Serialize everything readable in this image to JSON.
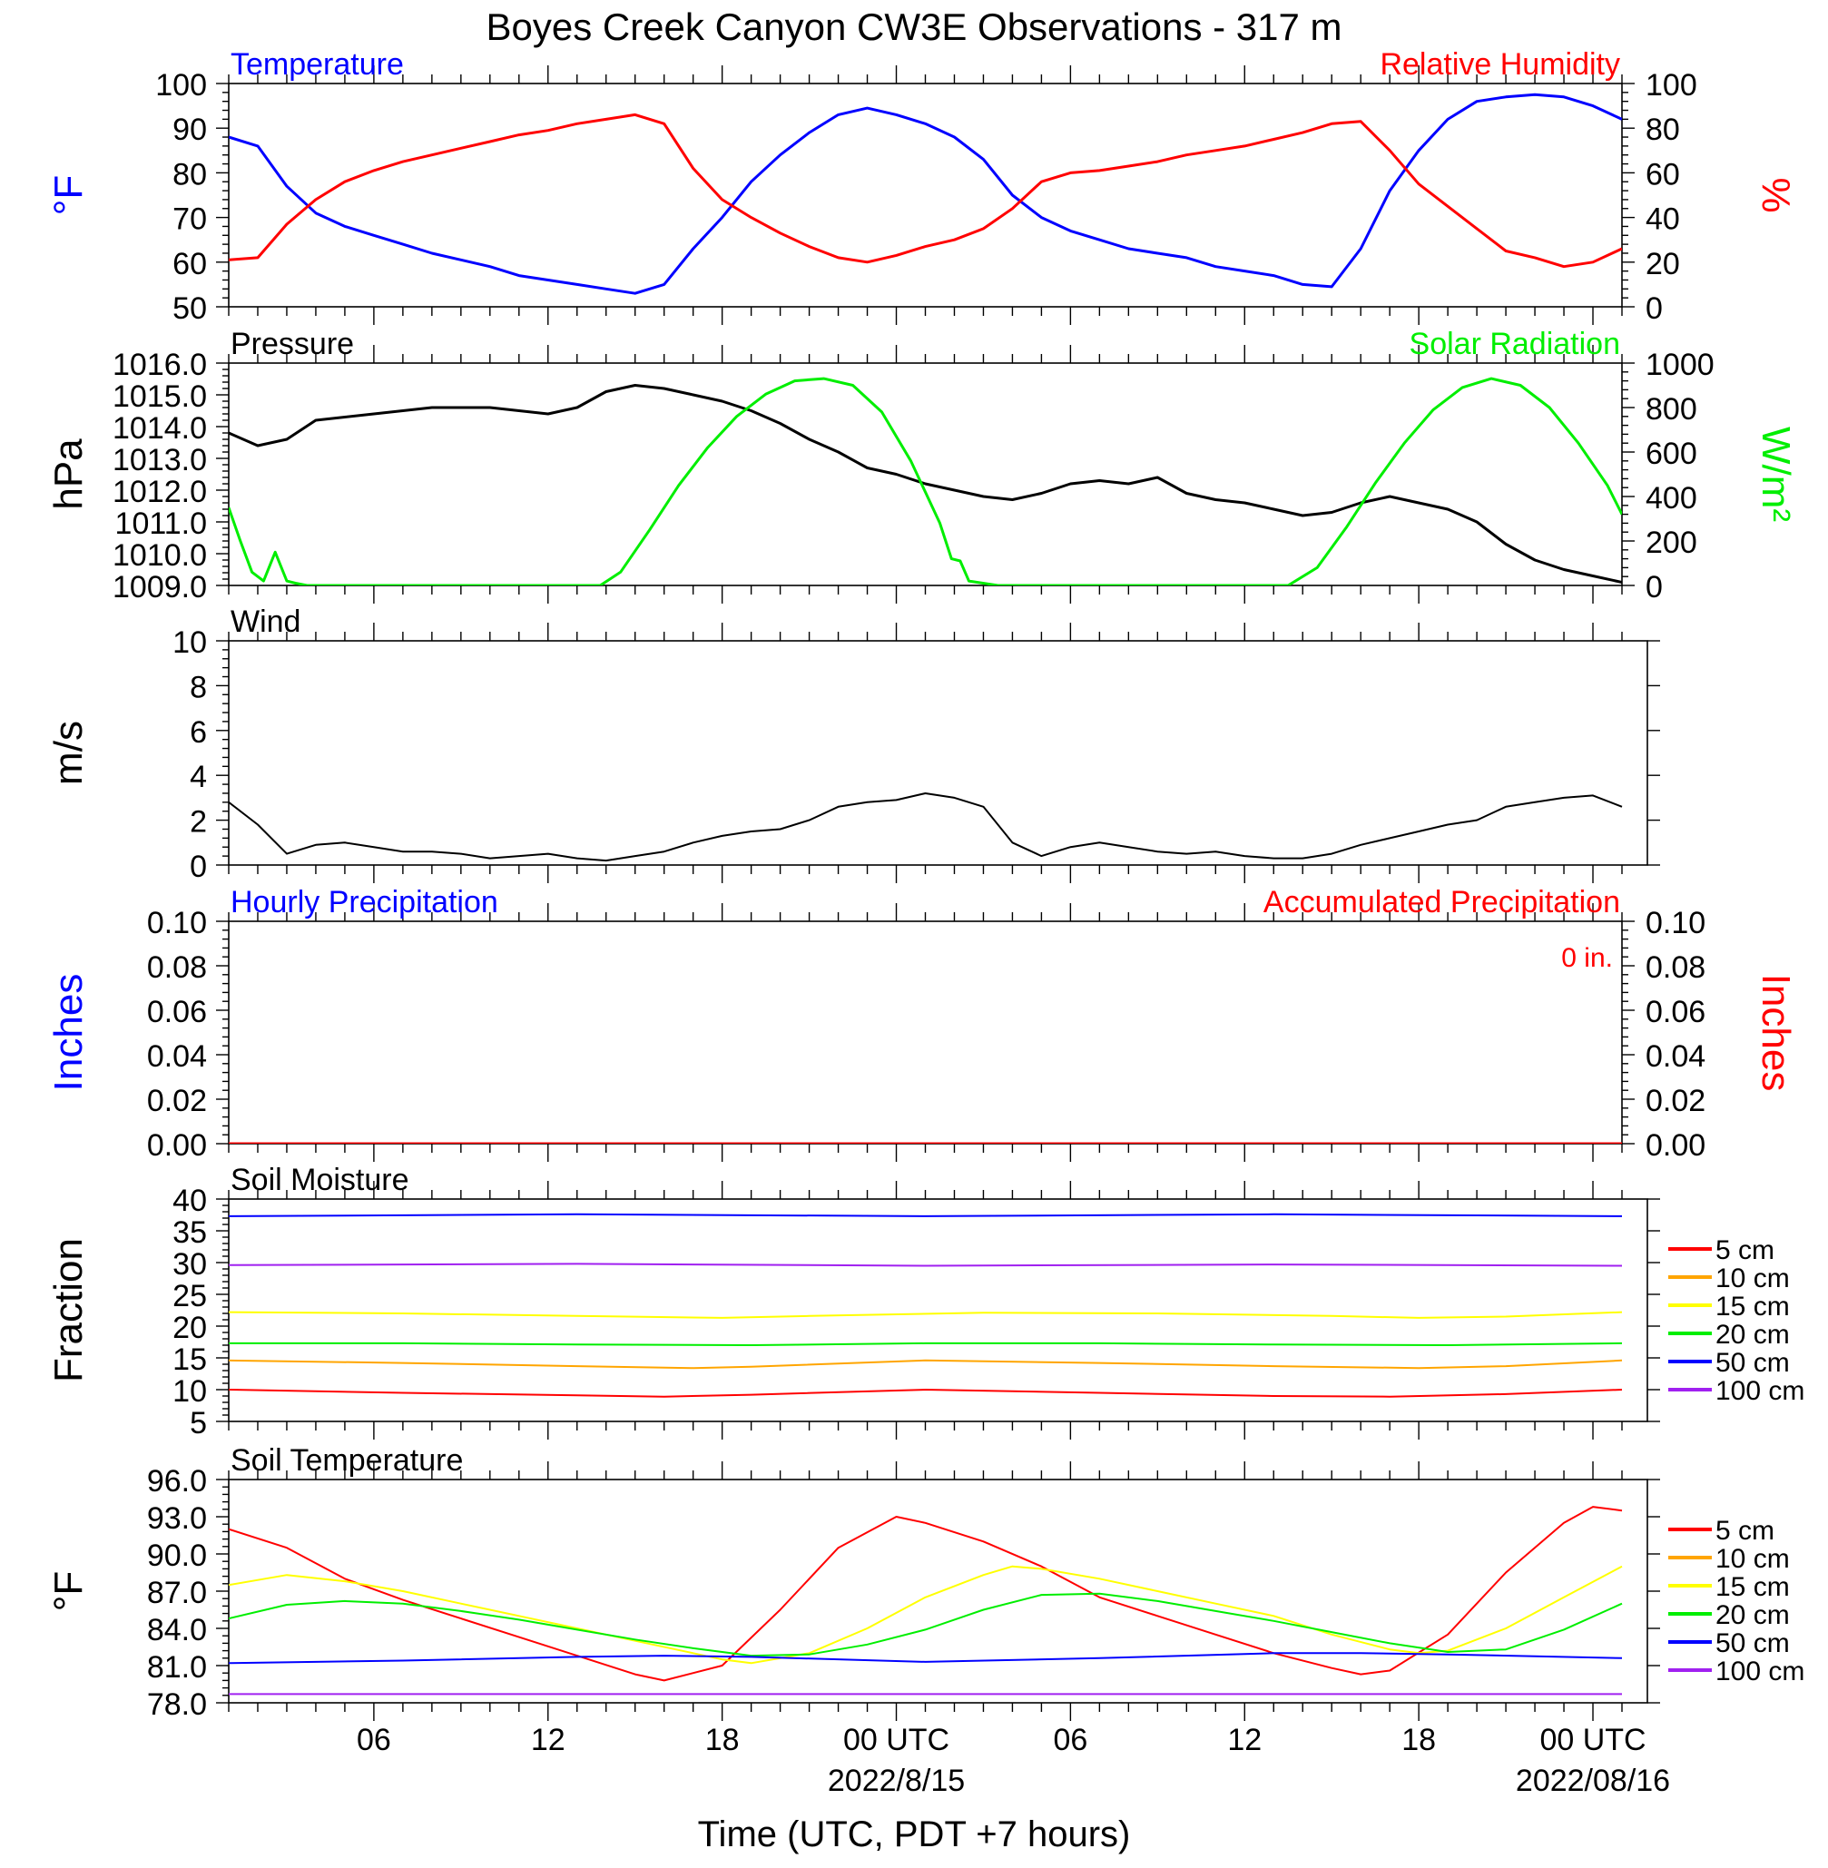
{
  "title": "Boyes Creek Canyon CW3E Observations - 317 m",
  "x_axis": {
    "label": "Time (UTC, PDT +7 hours)",
    "range_hours": [
      0,
      48
    ],
    "tick_labels": [
      {
        "hour": 5,
        "label": "06"
      },
      {
        "hour": 11,
        "label": "12"
      },
      {
        "hour": 17,
        "label": "18"
      },
      {
        "hour": 23,
        "label": "00 UTC"
      },
      {
        "hour": 29,
        "label": "06"
      },
      {
        "hour": 35,
        "label": "12"
      },
      {
        "hour": 41,
        "label": "18"
      },
      {
        "hour": 47,
        "label": "00 UTC"
      }
    ],
    "date_labels": [
      {
        "hour": 23,
        "label": "2022/8/15"
      },
      {
        "hour": 47,
        "label": "2022/08/16"
      }
    ]
  },
  "colors": {
    "blue": "#0000ff",
    "red": "#ff0000",
    "green": "#00ee00",
    "black": "#000000",
    "orange": "#ffa500",
    "yellow": "#ffff00",
    "purple": "#a020f0"
  },
  "chart_data": [
    {
      "id": "temp-rh",
      "type": "line",
      "title_left": "Temperature",
      "title_right": "Relative Humidity",
      "ylabel_left": "°F",
      "ylabel_right": "%",
      "ylim_left": [
        50,
        100
      ],
      "ylim_right": [
        0,
        100
      ],
      "ticks_left": [
        "50",
        "60",
        "70",
        "80",
        "90",
        "100"
      ],
      "ticks_right": [
        "0",
        "20",
        "40",
        "60",
        "80",
        "100"
      ],
      "series": [
        {
          "name": "Temperature",
          "axis": "left",
          "color": "#0000ff",
          "x": [
            0,
            1,
            2,
            3,
            4,
            5,
            6,
            7,
            8,
            9,
            10,
            11,
            12,
            13,
            14,
            15,
            16,
            17,
            18,
            19,
            20,
            21,
            22,
            23,
            24,
            25,
            26,
            27,
            28,
            29,
            30,
            31,
            32,
            33,
            34,
            35,
            36,
            37,
            38,
            39,
            40,
            41,
            42,
            43,
            44,
            45,
            46,
            47,
            48
          ],
          "y": [
            88,
            86,
            77,
            71,
            68,
            66,
            64,
            62,
            60.5,
            59,
            57,
            56,
            55,
            54,
            53,
            55,
            63,
            70,
            78,
            84,
            89,
            93,
            94.5,
            93,
            91,
            88,
            83,
            75,
            70,
            67,
            65,
            63,
            62,
            61,
            59,
            58,
            57,
            55,
            54.5,
            63,
            76,
            85,
            92,
            96,
            97,
            97.5,
            97,
            95,
            92
          ]
        },
        {
          "name": "Relative Humidity",
          "axis": "right",
          "color": "#ff0000",
          "x": [
            0,
            1,
            2,
            3,
            4,
            5,
            6,
            7,
            8,
            9,
            10,
            11,
            12,
            13,
            14,
            15,
            16,
            17,
            18,
            19,
            20,
            21,
            22,
            23,
            24,
            25,
            26,
            27,
            28,
            29,
            30,
            31,
            32,
            33,
            34,
            35,
            36,
            37,
            38,
            39,
            40,
            41,
            42,
            43,
            44,
            45,
            46,
            47,
            48
          ],
          "y": [
            21,
            22,
            37,
            48,
            56,
            61,
            65,
            68,
            71,
            74,
            77,
            79,
            82,
            84,
            86,
            82,
            62,
            48,
            40,
            33,
            27,
            22,
            20,
            23,
            27,
            30,
            35,
            44,
            56,
            60,
            61,
            63,
            65,
            68,
            70,
            72,
            75,
            78,
            82,
            83,
            70,
            55,
            45,
            35,
            25,
            22,
            18,
            20,
            26
          ]
        }
      ]
    },
    {
      "id": "pressure-solar",
      "type": "line",
      "title_left": "Pressure",
      "title_right": "Solar Radiation",
      "ylabel_left": "hPa",
      "ylabel_right": "W/m²",
      "ylim_left": [
        1009,
        1016
      ],
      "ylim_right": [
        0,
        1000
      ],
      "ticks_left": [
        "1009.0",
        "1010.0",
        "1011.0",
        "1012.0",
        "1013.0",
        "1014.0",
        "1015.0",
        "1016.0"
      ],
      "ticks_right": [
        "0",
        "200",
        "400",
        "600",
        "800",
        "1000"
      ],
      "series": [
        {
          "name": "Pressure",
          "axis": "left",
          "color": "#000000",
          "x": [
            0,
            1,
            2,
            3,
            4,
            5,
            6,
            7,
            8,
            9,
            10,
            11,
            12,
            13,
            14,
            15,
            16,
            17,
            18,
            19,
            20,
            21,
            22,
            23,
            24,
            25,
            26,
            27,
            28,
            29,
            30,
            31,
            32,
            33,
            34,
            35,
            36,
            37,
            38,
            39,
            40,
            41,
            42,
            43,
            44,
            45,
            46,
            47,
            48
          ],
          "y": [
            1013.8,
            1013.4,
            1013.6,
            1014.2,
            1014.3,
            1014.4,
            1014.5,
            1014.6,
            1014.6,
            1014.6,
            1014.5,
            1014.4,
            1014.6,
            1015.1,
            1015.3,
            1015.2,
            1015.0,
            1014.8,
            1014.5,
            1014.1,
            1013.6,
            1013.2,
            1012.7,
            1012.5,
            1012.2,
            1012.0,
            1011.8,
            1011.7,
            1011.9,
            1012.2,
            1012.3,
            1012.2,
            1012.4,
            1011.9,
            1011.7,
            1011.6,
            1011.4,
            1011.2,
            1011.3,
            1011.6,
            1011.8,
            1011.6,
            1011.4,
            1011.0,
            1010.3,
            1009.8,
            1009.5,
            1009.3,
            1009.1
          ]
        },
        {
          "name": "Solar Radiation",
          "axis": "right",
          "color": "#00ee00",
          "x": [
            0,
            0.4,
            0.8,
            1.2,
            1.6,
            2.0,
            2.3,
            2.7,
            3,
            12.8,
            13.5,
            14.5,
            15.5,
            16.5,
            17.5,
            18.5,
            19.5,
            20.5,
            21.5,
            22.5,
            23.5,
            24.5,
            24.9,
            25.2,
            25.5,
            26.5,
            36.5,
            37.5,
            38.5,
            39.5,
            40.5,
            41.5,
            42.5,
            43.5,
            44.5,
            45.5,
            46.5,
            47.5,
            48
          ],
          "y": [
            350,
            200,
            60,
            20,
            150,
            20,
            10,
            0,
            0,
            0,
            60,
            250,
            450,
            620,
            760,
            860,
            920,
            930,
            900,
            780,
            560,
            280,
            120,
            110,
            20,
            0,
            0,
            80,
            260,
            460,
            640,
            790,
            890,
            930,
            900,
            800,
            640,
            450,
            320
          ]
        }
      ]
    },
    {
      "id": "wind",
      "type": "line",
      "title_left": "Wind",
      "ylabel_left": "m/s",
      "ylim_left": [
        0,
        10
      ],
      "ticks_left": [
        "0",
        "2",
        "4",
        "6",
        "8",
        "10"
      ],
      "series": [
        {
          "name": "Wind",
          "axis": "left",
          "color": "#000000",
          "x": [
            0,
            1,
            2,
            3,
            4,
            5,
            6,
            7,
            8,
            9,
            10,
            11,
            12,
            13,
            14,
            15,
            16,
            17,
            18,
            19,
            20,
            21,
            22,
            23,
            24,
            25,
            26,
            27,
            28,
            29,
            30,
            31,
            32,
            33,
            34,
            35,
            36,
            37,
            38,
            39,
            40,
            41,
            42,
            43,
            44,
            45,
            46,
            47,
            48
          ],
          "y": [
            2.8,
            1.8,
            0.5,
            0.9,
            1.0,
            0.8,
            0.6,
            0.6,
            0.5,
            0.3,
            0.4,
            0.5,
            0.3,
            0.2,
            0.4,
            0.6,
            1.0,
            1.3,
            1.5,
            1.6,
            2.0,
            2.6,
            2.8,
            2.9,
            3.2,
            3.0,
            2.6,
            1.0,
            0.4,
            0.8,
            1.0,
            0.8,
            0.6,
            0.5,
            0.6,
            0.4,
            0.3,
            0.3,
            0.5,
            0.9,
            1.2,
            1.5,
            1.8,
            2.0,
            2.6,
            2.8,
            3.0,
            3.1,
            2.6
          ]
        }
      ]
    },
    {
      "id": "precip",
      "type": "line",
      "title_left": "Hourly Precipitation",
      "title_right": "Accumulated Precipitation",
      "annotation": "0 in.",
      "ylabel_left": "Inches",
      "ylabel_right": "Inches",
      "ylim_left": [
        0,
        0.1
      ],
      "ylim_right": [
        0,
        0.1
      ],
      "ticks_left": [
        "0.00",
        "0.02",
        "0.04",
        "0.06",
        "0.08",
        "0.10"
      ],
      "ticks_right": [
        "0.00",
        "0.02",
        "0.04",
        "0.06",
        "0.08",
        "0.10"
      ],
      "series": [
        {
          "name": "Accumulated Precipitation",
          "axis": "left",
          "color": "#ff0000",
          "x": [
            0,
            48
          ],
          "y": [
            0,
            0
          ]
        }
      ]
    },
    {
      "id": "soil-moisture",
      "type": "line",
      "title_left": "Soil Moisture",
      "ylabel_left": "Fraction",
      "ylim_left": [
        5,
        40
      ],
      "ticks_left": [
        "5",
        "10",
        "15",
        "20",
        "25",
        "30",
        "35",
        "40"
      ],
      "legend": [
        "5 cm",
        "10 cm",
        "15 cm",
        "20 cm",
        "50 cm",
        "100 cm"
      ],
      "series": [
        {
          "name": "5 cm",
          "axis": "left",
          "color": "#ff0000",
          "x": [
            0,
            6,
            12,
            15,
            18,
            24,
            30,
            36,
            40,
            44,
            48
          ],
          "y": [
            10.0,
            9.5,
            9.1,
            8.9,
            9.2,
            10.0,
            9.5,
            9.0,
            8.9,
            9.3,
            10.0
          ]
        },
        {
          "name": "10 cm",
          "axis": "left",
          "color": "#ffa500",
          "x": [
            0,
            6,
            12,
            16,
            18,
            24,
            30,
            36,
            41,
            44,
            48
          ],
          "y": [
            14.6,
            14.2,
            13.7,
            13.4,
            13.6,
            14.6,
            14.2,
            13.7,
            13.4,
            13.7,
            14.6
          ]
        },
        {
          "name": "15 cm",
          "axis": "left",
          "color": "#ffff00",
          "x": [
            0,
            6,
            12,
            17,
            20,
            26,
            32,
            38,
            41,
            44,
            48
          ],
          "y": [
            22.2,
            22.0,
            21.6,
            21.3,
            21.6,
            22.1,
            22.0,
            21.6,
            21.3,
            21.5,
            22.2
          ]
        },
        {
          "name": "20 cm",
          "axis": "left",
          "color": "#00ee00",
          "x": [
            0,
            6,
            12,
            18,
            24,
            30,
            36,
            42,
            48
          ],
          "y": [
            17.3,
            17.3,
            17.1,
            17.0,
            17.3,
            17.3,
            17.1,
            17.0,
            17.3
          ]
        },
        {
          "name": "50 cm",
          "axis": "left",
          "color": "#0000ff",
          "x": [
            0,
            12,
            24,
            36,
            48
          ],
          "y": [
            37.3,
            37.6,
            37.3,
            37.6,
            37.3
          ]
        },
        {
          "name": "100 cm",
          "axis": "left",
          "color": "#a020f0",
          "x": [
            0,
            12,
            24,
            36,
            48
          ],
          "y": [
            29.6,
            29.8,
            29.5,
            29.7,
            29.5
          ]
        }
      ]
    },
    {
      "id": "soil-temperature",
      "type": "line",
      "title_left": "Soil Temperature",
      "ylabel_left": "°F",
      "ylim_left": [
        78,
        96
      ],
      "ticks_left": [
        "78.0",
        "81.0",
        "84.0",
        "87.0",
        "90.0",
        "93.0",
        "96.0"
      ],
      "legend": [
        "5 cm",
        "10 cm",
        "15 cm",
        "20 cm",
        "50 cm",
        "100 cm"
      ],
      "series": [
        {
          "name": "5 cm",
          "axis": "left",
          "color": "#ff0000",
          "x": [
            0,
            2,
            4,
            6,
            8,
            10,
            12,
            14,
            15,
            17,
            19,
            21,
            23,
            24,
            26,
            28,
            30,
            32,
            34,
            36,
            38,
            39,
            40,
            42,
            44,
            46,
            47,
            48
          ],
          "y": [
            92.0,
            90.5,
            88.0,
            86.3,
            84.8,
            83.3,
            81.8,
            80.3,
            79.8,
            81.0,
            85.5,
            90.5,
            93.0,
            92.5,
            91.0,
            89.0,
            86.5,
            85.0,
            83.5,
            82.0,
            80.8,
            80.3,
            80.6,
            83.5,
            88.5,
            92.5,
            93.8,
            93.5
          ]
        },
        {
          "name": "15 cm",
          "axis": "left",
          "color": "#ffff00",
          "x": [
            0,
            2,
            4,
            6,
            8,
            10,
            12,
            14,
            16,
            17,
            18,
            20,
            22,
            24,
            26,
            27,
            28,
            30,
            32,
            34,
            36,
            38,
            40,
            41,
            42,
            44,
            46,
            48
          ],
          "y": [
            87.5,
            88.3,
            87.8,
            87.0,
            86.0,
            85.0,
            84.0,
            83.0,
            82.0,
            81.5,
            81.2,
            82.0,
            84.0,
            86.5,
            88.3,
            89.0,
            88.8,
            88.0,
            87.0,
            86.0,
            85.0,
            83.5,
            82.3,
            82.0,
            82.2,
            84.0,
            86.5,
            89.0
          ]
        },
        {
          "name": "20 cm",
          "axis": "left",
          "color": "#00ee00",
          "x": [
            0,
            2,
            4,
            6,
            8,
            10,
            12,
            14,
            16,
            18,
            20,
            22,
            24,
            26,
            28,
            30,
            32,
            34,
            36,
            38,
            40,
            42,
            44,
            46,
            48
          ],
          "y": [
            84.8,
            85.9,
            86.2,
            86.0,
            85.4,
            84.7,
            83.9,
            83.1,
            82.4,
            81.8,
            81.9,
            82.7,
            83.9,
            85.5,
            86.7,
            86.8,
            86.2,
            85.4,
            84.6,
            83.7,
            82.8,
            82.1,
            82.3,
            83.9,
            86.0
          ]
        },
        {
          "name": "50 cm",
          "axis": "left",
          "color": "#0000ff",
          "x": [
            0,
            6,
            12,
            15,
            18,
            24,
            30,
            36,
            39,
            42,
            48
          ],
          "y": [
            81.2,
            81.4,
            81.7,
            81.8,
            81.7,
            81.3,
            81.6,
            82.0,
            82.0,
            81.9,
            81.6
          ]
        },
        {
          "name": "100 cm",
          "axis": "left",
          "color": "#a020f0",
          "x": [
            0,
            48
          ],
          "y": [
            78.7,
            78.7
          ]
        }
      ]
    }
  ]
}
